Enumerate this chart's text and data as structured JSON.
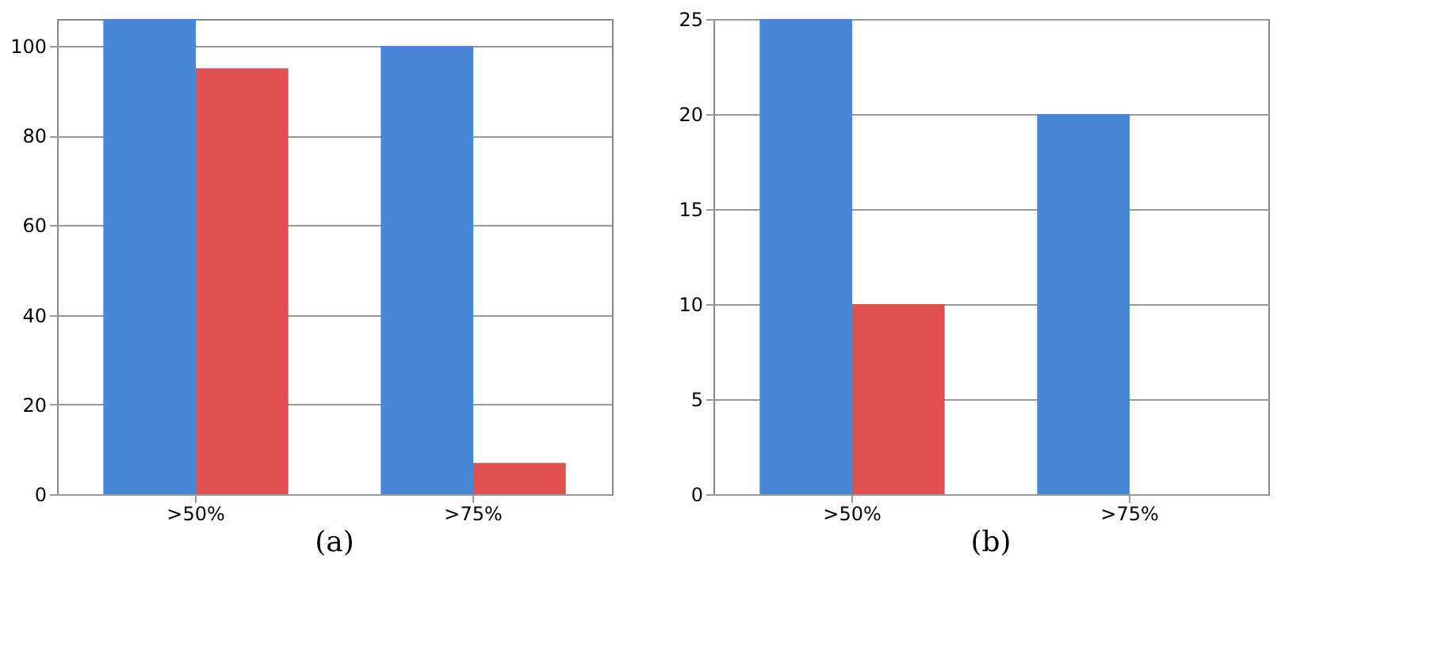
{
  "chart_data": [
    {
      "type": "bar",
      "categories": [
        ">50%",
        ">75%"
      ],
      "series": [
        {
          "color": "#4a86d8",
          "values": [
            106,
            100
          ]
        },
        {
          "color": "#e05050",
          "values": [
            95,
            7
          ]
        }
      ],
      "ylim": [
        0,
        106
      ],
      "yticks": [
        0,
        20,
        40,
        60,
        80,
        100
      ],
      "grid": "y",
      "legend": false,
      "annotations": [
        "(a)"
      ]
    },
    {
      "type": "bar",
      "categories": [
        ">50%",
        ">75%"
      ],
      "series": [
        {
          "color": "#4a86d8",
          "values": [
            25,
            20
          ]
        },
        {
          "color": "#e05050",
          "values": [
            10,
            0
          ]
        }
      ],
      "ylim": [
        0,
        25
      ],
      "yticks": [
        0,
        5,
        10,
        15,
        20,
        25
      ],
      "grid": "y",
      "legend": false,
      "annotations": [
        "(b)"
      ]
    }
  ]
}
